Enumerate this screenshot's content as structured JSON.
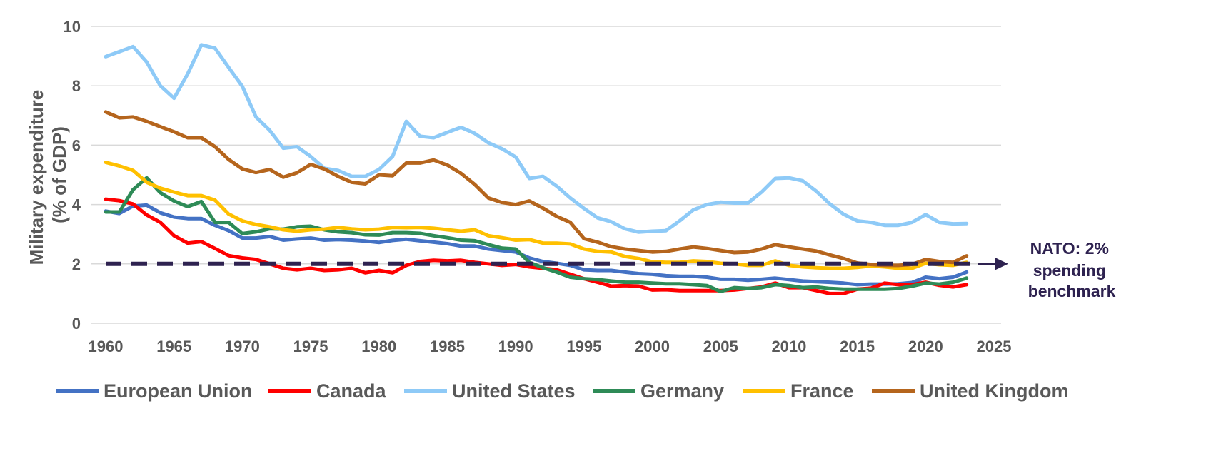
{
  "chart_data": {
    "type": "line",
    "title": "",
    "xlabel": "",
    "ylabel_lines": [
      "Military expenditure",
      "(% of GDP)"
    ],
    "xlim": [
      1960,
      2025
    ],
    "ylim": [
      0,
      10
    ],
    "x_ticks": [
      "1960",
      "1965",
      "1970",
      "1975",
      "1980",
      "1985",
      "1990",
      "1995",
      "2000",
      "2005",
      "2010",
      "2015",
      "2020",
      "2025"
    ],
    "y_ticks": [
      "0",
      "2",
      "4",
      "6",
      "8",
      "10"
    ],
    "grid": true,
    "legend_position": "bottom",
    "benchmark": {
      "value": 2,
      "color": "#2e2250",
      "label_lines": [
        "NATO: 2%",
        "spending",
        "benchmark"
      ]
    },
    "series": [
      {
        "name": "European Union",
        "color": "#4472c4",
        "start_year": 1960,
        "values": [
          3.78,
          3.7,
          3.95,
          3.98,
          3.72,
          3.58,
          3.53,
          3.53,
          3.3,
          3.12,
          2.87,
          2.87,
          2.92,
          2.8,
          2.84,
          2.87,
          2.8,
          2.82,
          2.8,
          2.77,
          2.72,
          2.79,
          2.83,
          2.78,
          2.73,
          2.68,
          2.6,
          2.6,
          2.5,
          2.45,
          2.4,
          2.2,
          2.08,
          2.02,
          1.95,
          1.8,
          1.78,
          1.78,
          1.72,
          1.67,
          1.65,
          1.6,
          1.58,
          1.58,
          1.55,
          1.48,
          1.48,
          1.45,
          1.48,
          1.52,
          1.47,
          1.42,
          1.4,
          1.38,
          1.35,
          1.3,
          1.32,
          1.32,
          1.33,
          1.37,
          1.55,
          1.5,
          1.55,
          1.72
        ]
      },
      {
        "name": "Canada",
        "color": "#ff0000",
        "start_year": 1960,
        "values": [
          4.18,
          4.13,
          4.02,
          3.65,
          3.4,
          2.95,
          2.7,
          2.75,
          2.52,
          2.28,
          2.2,
          2.15,
          2.0,
          1.85,
          1.8,
          1.85,
          1.78,
          1.8,
          1.85,
          1.7,
          1.78,
          1.7,
          1.95,
          2.08,
          2.12,
          2.1,
          2.12,
          2.05,
          2.0,
          1.95,
          1.98,
          1.9,
          1.85,
          1.8,
          1.65,
          1.5,
          1.38,
          1.25,
          1.27,
          1.25,
          1.12,
          1.13,
          1.1,
          1.1,
          1.1,
          1.1,
          1.12,
          1.17,
          1.22,
          1.35,
          1.2,
          1.2,
          1.1,
          1.0,
          1.0,
          1.15,
          1.18,
          1.35,
          1.3,
          1.3,
          1.38,
          1.28,
          1.22,
          1.3
        ]
      },
      {
        "name": "United States",
        "color": "#8ecaf7",
        "start_year": 1960,
        "values": [
          8.98,
          9.15,
          9.32,
          8.8,
          8.0,
          7.58,
          8.4,
          9.38,
          9.27,
          8.62,
          7.98,
          6.95,
          6.5,
          5.9,
          5.95,
          5.62,
          5.22,
          5.15,
          4.95,
          4.95,
          5.18,
          5.62,
          6.8,
          6.3,
          6.25,
          6.43,
          6.6,
          6.4,
          6.08,
          5.88,
          5.6,
          4.88,
          4.95,
          4.62,
          4.22,
          3.87,
          3.55,
          3.42,
          3.18,
          3.07,
          3.1,
          3.12,
          3.45,
          3.82,
          4.0,
          4.08,
          4.05,
          4.05,
          4.42,
          4.88,
          4.9,
          4.8,
          4.45,
          4.02,
          3.67,
          3.45,
          3.4,
          3.3,
          3.3,
          3.4,
          3.66,
          3.4,
          3.35,
          3.36
        ]
      },
      {
        "name": "Germany",
        "color": "#2e8b57",
        "start_year": 1960,
        "values": [
          3.75,
          3.75,
          4.5,
          4.9,
          4.4,
          4.12,
          3.93,
          4.1,
          3.4,
          3.4,
          3.02,
          3.08,
          3.18,
          3.17,
          3.25,
          3.27,
          3.15,
          3.08,
          3.05,
          2.98,
          2.97,
          3.05,
          3.05,
          3.03,
          2.95,
          2.88,
          2.8,
          2.78,
          2.65,
          2.53,
          2.5,
          2.05,
          1.87,
          1.72,
          1.55,
          1.5,
          1.47,
          1.42,
          1.38,
          1.38,
          1.35,
          1.33,
          1.33,
          1.3,
          1.27,
          1.07,
          1.2,
          1.17,
          1.2,
          1.3,
          1.27,
          1.2,
          1.22,
          1.17,
          1.15,
          1.15,
          1.15,
          1.15,
          1.17,
          1.25,
          1.35,
          1.32,
          1.38,
          1.52
        ]
      },
      {
        "name": "France",
        "color": "#ffc000",
        "start_year": 1960,
        "values": [
          5.42,
          5.3,
          5.15,
          4.75,
          4.55,
          4.42,
          4.3,
          4.3,
          4.15,
          3.68,
          3.45,
          3.33,
          3.25,
          3.15,
          3.1,
          3.15,
          3.17,
          3.23,
          3.18,
          3.15,
          3.17,
          3.23,
          3.22,
          3.23,
          3.2,
          3.15,
          3.1,
          3.15,
          2.95,
          2.88,
          2.8,
          2.82,
          2.7,
          2.7,
          2.67,
          2.5,
          2.42,
          2.4,
          2.25,
          2.18,
          2.07,
          2.05,
          2.05,
          2.1,
          2.08,
          2.02,
          2.0,
          1.95,
          1.95,
          2.1,
          1.95,
          1.9,
          1.87,
          1.85,
          1.85,
          1.88,
          1.93,
          1.9,
          1.85,
          1.85,
          2.02,
          1.97,
          1.95,
          2.05
        ]
      },
      {
        "name": "United Kingdom",
        "color": "#b5651d",
        "start_year": 1960,
        "values": [
          7.12,
          6.92,
          6.95,
          6.8,
          6.62,
          6.45,
          6.25,
          6.25,
          5.95,
          5.52,
          5.2,
          5.08,
          5.18,
          4.92,
          5.07,
          5.35,
          5.2,
          4.95,
          4.75,
          4.7,
          5.0,
          4.97,
          5.4,
          5.4,
          5.5,
          5.33,
          5.05,
          4.68,
          4.22,
          4.07,
          4.0,
          4.12,
          3.88,
          3.6,
          3.4,
          2.85,
          2.73,
          2.58,
          2.5,
          2.45,
          2.4,
          2.42,
          2.5,
          2.57,
          2.52,
          2.45,
          2.38,
          2.4,
          2.5,
          2.65,
          2.57,
          2.5,
          2.43,
          2.3,
          2.18,
          2.03,
          1.98,
          1.95,
          1.95,
          1.98,
          2.15,
          2.08,
          2.05,
          2.27
        ]
      }
    ]
  }
}
